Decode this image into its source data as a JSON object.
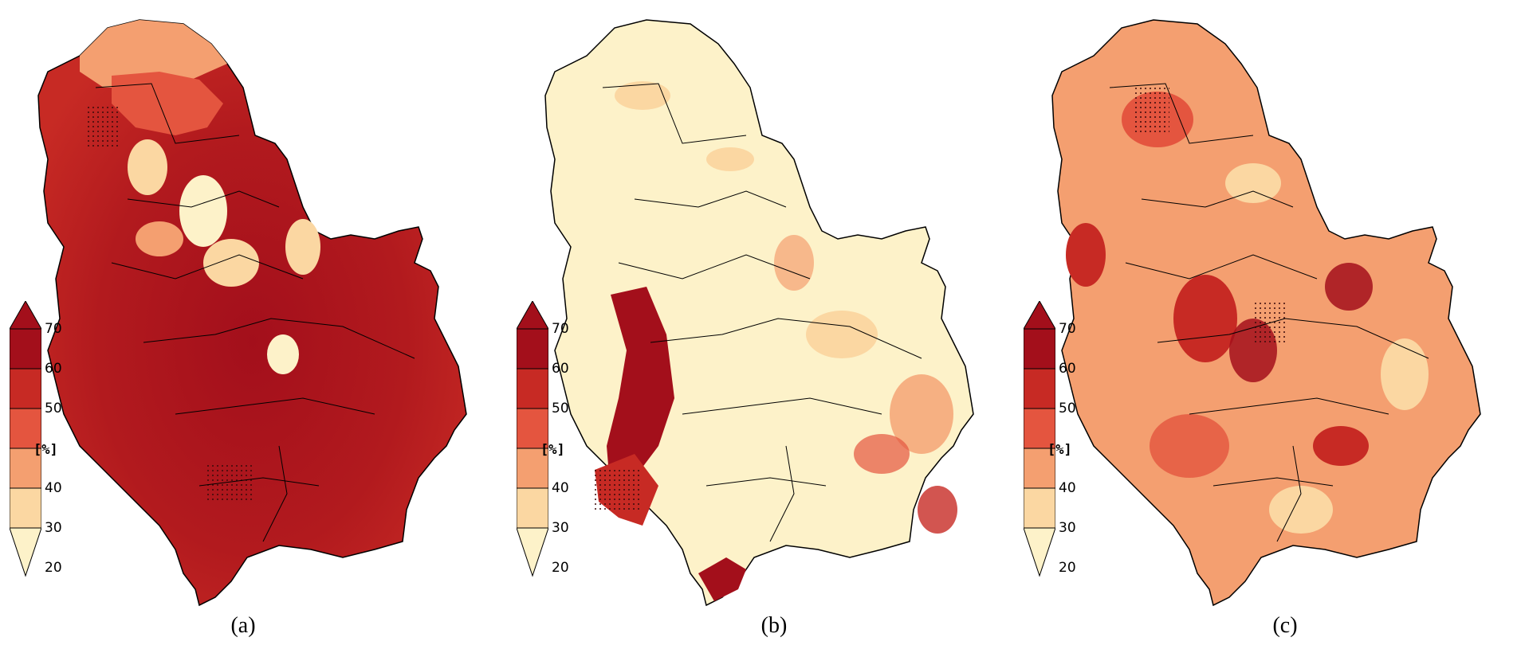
{
  "legend": {
    "unit": "[%]",
    "ticks": [
      "70",
      "60",
      "50",
      "40",
      "30",
      "20"
    ],
    "colors": [
      "#fdf2c9",
      "#fbd7a2",
      "#f49f70",
      "#e4553f",
      "#c72a24",
      "#a30f1b"
    ]
  },
  "panels": [
    {
      "label": "a",
      "fill_class": 5,
      "tone": "very high, mostly 60-70"
    },
    {
      "label": "b",
      "fill_class": 0,
      "tone": "low, mostly 20-30"
    },
    {
      "label": "c",
      "fill_class": 2,
      "tone": "moderate, mostly 40-60"
    }
  ],
  "captions": {
    "a": "(a)",
    "b": "(b)",
    "c": "(c)"
  }
}
